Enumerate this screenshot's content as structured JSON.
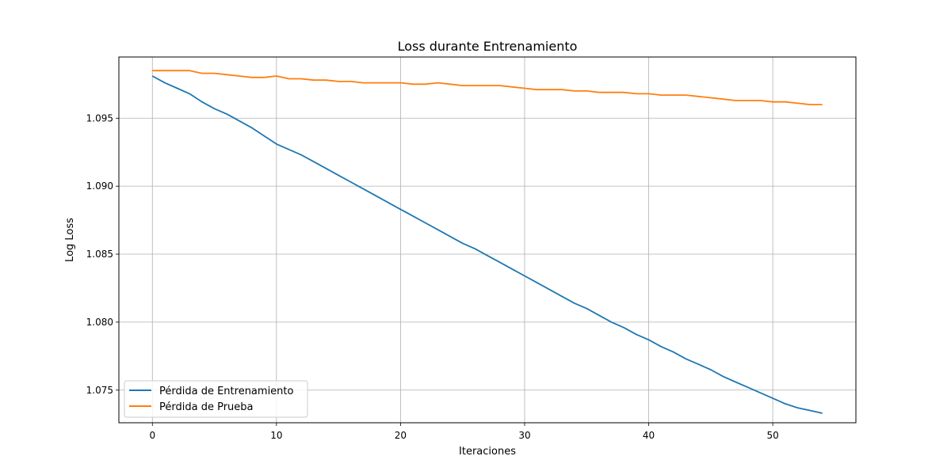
{
  "chart_data": {
    "type": "line",
    "title": "Loss durante Entrenamiento",
    "xlabel": "Iteraciones",
    "ylabel": "Log Loss",
    "xlim": [
      -2.7,
      56.7
    ],
    "ylim": [
      1.0726,
      1.0995
    ],
    "xticks": [
      0,
      10,
      20,
      30,
      40,
      50
    ],
    "yticks": [
      1.075,
      1.08,
      1.085,
      1.09,
      1.095
    ],
    "ytick_labels": [
      "1.075",
      "1.080",
      "1.085",
      "1.090",
      "1.095"
    ],
    "grid": true,
    "legend_position": "lower-left",
    "x": [
      0,
      1,
      2,
      3,
      4,
      5,
      6,
      7,
      8,
      9,
      10,
      11,
      12,
      13,
      14,
      15,
      16,
      17,
      18,
      19,
      20,
      21,
      22,
      23,
      24,
      25,
      26,
      27,
      28,
      29,
      30,
      31,
      32,
      33,
      34,
      35,
      36,
      37,
      38,
      39,
      40,
      41,
      42,
      43,
      44,
      45,
      46,
      47,
      48,
      49,
      50,
      51,
      52,
      53,
      54
    ],
    "series": [
      {
        "name": "Pérdida de Entrenamiento",
        "color": "#1f77b4",
        "values": [
          1.0981,
          1.0976,
          1.0972,
          1.0968,
          1.0962,
          1.0957,
          1.0953,
          1.0948,
          1.0943,
          1.0937,
          1.0931,
          1.0927,
          1.0923,
          1.0918,
          1.0913,
          1.0908,
          1.0903,
          1.0898,
          1.0893,
          1.0888,
          1.0883,
          1.0878,
          1.0873,
          1.0868,
          1.0863,
          1.0858,
          1.0854,
          1.0849,
          1.0844,
          1.0839,
          1.0834,
          1.0829,
          1.0824,
          1.0819,
          1.0814,
          1.081,
          1.0805,
          1.08,
          1.0796,
          1.0791,
          1.0787,
          1.0782,
          1.0778,
          1.0773,
          1.0769,
          1.0765,
          1.076,
          1.0756,
          1.0752,
          1.0748,
          1.0744,
          1.074,
          1.0737,
          1.0735,
          1.0733
        ]
      },
      {
        "name": "Pérdida de Prueba",
        "color": "#ff7f0e",
        "values": [
          1.0985,
          1.0985,
          1.0985,
          1.0985,
          1.0983,
          1.0983,
          1.0982,
          1.0981,
          1.098,
          1.098,
          1.0981,
          1.0979,
          1.0979,
          1.0978,
          1.0978,
          1.0977,
          1.0977,
          1.0976,
          1.0976,
          1.0976,
          1.0976,
          1.0975,
          1.0975,
          1.0976,
          1.0975,
          1.0974,
          1.0974,
          1.0974,
          1.0974,
          1.0973,
          1.0972,
          1.0971,
          1.0971,
          1.0971,
          1.097,
          1.097,
          1.0969,
          1.0969,
          1.0969,
          1.0968,
          1.0968,
          1.0967,
          1.0967,
          1.0967,
          1.0966,
          1.0965,
          1.0964,
          1.0963,
          1.0963,
          1.0963,
          1.0962,
          1.0962,
          1.0961,
          1.096,
          1.096
        ]
      }
    ]
  }
}
